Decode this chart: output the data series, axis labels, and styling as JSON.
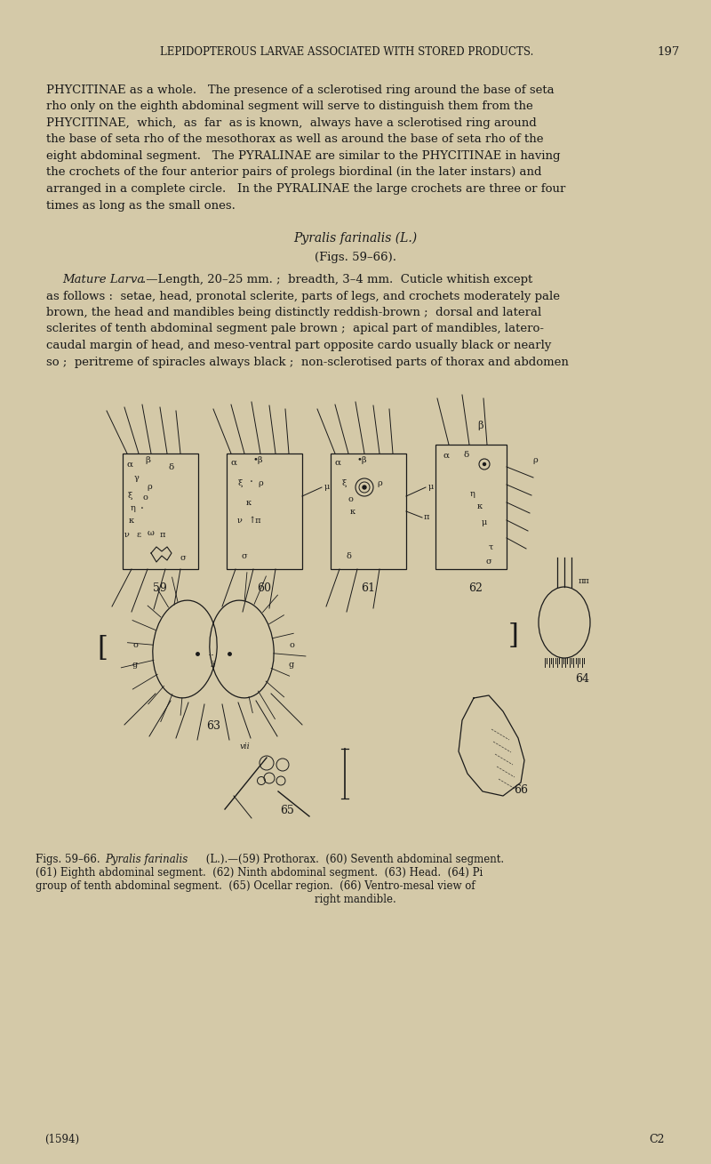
{
  "background_color": "#d4c9a8",
  "page_background": "#d4c9a8",
  "header_text": "LEPIDOPTEROUS LARVAE ASSOCIATED WITH STORED PRODUCTS.",
  "header_page": "197",
  "body_fontsize": 9.5,
  "body_color": "#1a1a1a",
  "bottom_left": "(1594)",
  "bottom_right": "C2"
}
